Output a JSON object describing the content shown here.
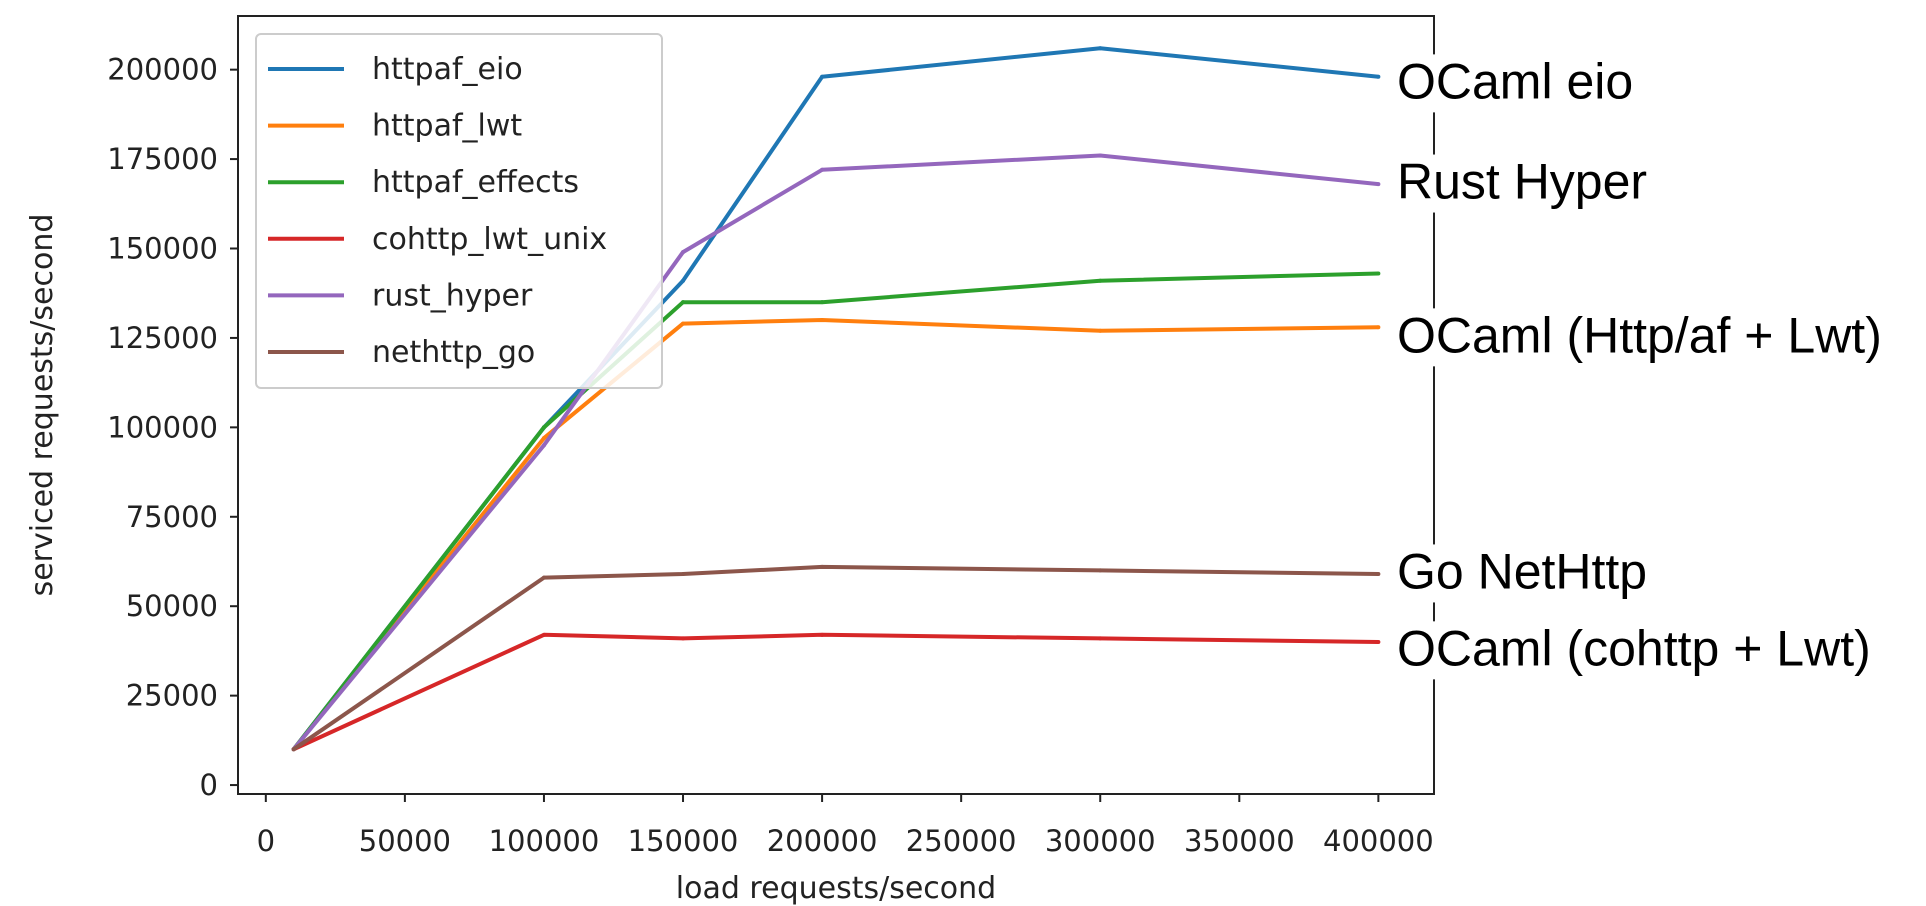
{
  "chart_data": {
    "type": "line",
    "xlabel": "load requests/second",
    "ylabel": "serviced requests/second",
    "xlim": [
      -10000,
      420000
    ],
    "ylim": [
      -2500,
      215000
    ],
    "x_ticks": [
      0,
      50000,
      100000,
      150000,
      200000,
      250000,
      300000,
      350000,
      400000
    ],
    "y_ticks": [
      0,
      25000,
      50000,
      75000,
      100000,
      125000,
      150000,
      175000,
      200000
    ],
    "x_tick_labels": [
      "0",
      "50000",
      "100000",
      "150000",
      "200000",
      "250000",
      "300000",
      "350000",
      "400000"
    ],
    "y_tick_labels": [
      "0",
      "25000",
      "50000",
      "75000",
      "100000",
      "125000",
      "150000",
      "175000",
      "200000"
    ],
    "x": [
      10000,
      100000,
      150000,
      200000,
      300000,
      400000
    ],
    "grid": false,
    "legend_position": "upper-left",
    "series": [
      {
        "name": "httpaf_eio",
        "color": "#1f77b4",
        "values": [
          10000,
          100000,
          141000,
          198000,
          206000,
          198000
        ]
      },
      {
        "name": "httpaf_lwt",
        "color": "#ff7f0e",
        "values": [
          10000,
          97000,
          129000,
          130000,
          127000,
          128000
        ]
      },
      {
        "name": "httpaf_effects",
        "color": "#2ca02c",
        "values": [
          10000,
          100000,
          135000,
          135000,
          141000,
          143000
        ]
      },
      {
        "name": "cohttp_lwt_unix",
        "color": "#d62728",
        "values": [
          10000,
          42000,
          41000,
          42000,
          41000,
          40000
        ]
      },
      {
        "name": "rust_hyper",
        "color": "#9467bd",
        "values": [
          10000,
          95000,
          149000,
          172000,
          176000,
          168000
        ]
      },
      {
        "name": "nethttp_go",
        "color": "#8c564b",
        "values": [
          10000,
          58000,
          59000,
          61000,
          60000,
          59000
        ]
      }
    ],
    "annotations": [
      {
        "text": "OCaml eio",
        "y": 197000
      },
      {
        "text": "Rust Hyper",
        "y": 169000
      },
      {
        "text": "OCaml (Http/af + Lwt)",
        "y": 126000
      },
      {
        "text": "Go NetHttp",
        "y": 60000
      },
      {
        "text": "OCaml (cohttp + Lwt)",
        "y": 38500
      }
    ]
  }
}
